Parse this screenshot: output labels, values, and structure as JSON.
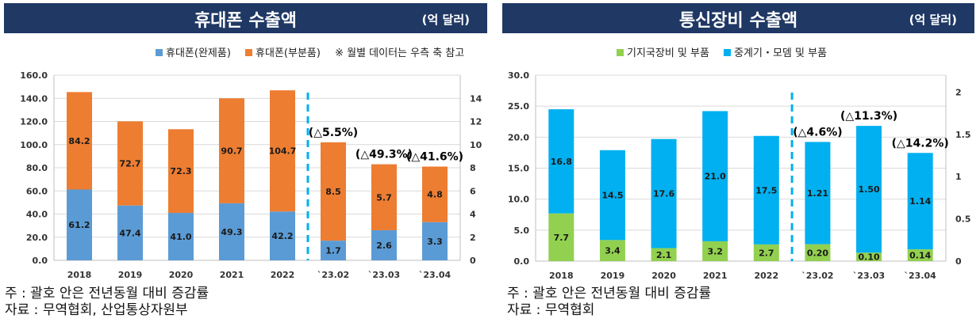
{
  "colors": {
    "header_bg": "#1f3864",
    "blue_phone": "#5b9bd5",
    "orange_parts": "#ed7d31",
    "green_base": "#92d050",
    "cyan_relay": "#00b0f0",
    "divider": "#00b0f0"
  },
  "left": {
    "title": "휴대폰 수출액",
    "unit": "(억 달러)",
    "legend_items": [
      "휴대폰(완제품)",
      "휴대폰(부분품)"
    ],
    "legend_note": "※ 월별 데이터는 우측 축 참고",
    "footnote_1": "주 : 괄호 안은 전년동월 대비 증감률",
    "footnote_2": "자료 : 무역협회, 산업통상자원부"
  },
  "right": {
    "title": "통신장비 수출액",
    "unit": "(억 달러)",
    "legend_items": [
      "기지국장비 및 부품",
      "중계기・모뎀 및 부품"
    ],
    "footnote_1": "주 : 괄호 안은 전년동월 대비 증감률",
    "footnote_2": "자료 : 무역협회"
  },
  "chart_data": [
    {
      "type": "bar",
      "stacked": true,
      "title": "휴대폰 수출액",
      "categories": [
        "2018",
        "2019",
        "2020",
        "2021",
        "2022",
        "`23.02",
        "`23.03",
        "`23.04"
      ],
      "series": [
        {
          "name": "휴대폰(완제품)",
          "values": [
            61.2,
            47.4,
            41.0,
            49.3,
            42.2,
            1.7,
            2.6,
            3.3
          ],
          "labels": [
            "61.2",
            "47.4",
            "41.0",
            "49.3",
            "42.2",
            "1.7",
            "2.6",
            "3.3"
          ]
        },
        {
          "name": "휴대폰(부분품)",
          "values": [
            84.2,
            72.7,
            72.3,
            90.7,
            104.7,
            8.5,
            5.7,
            4.8
          ],
          "labels": [
            "84.2",
            "72.7",
            "72.3",
            "90.7",
            "104.7",
            "8.5",
            "5.7",
            "4.8"
          ]
        }
      ],
      "axis_assignment": [
        "left",
        "left",
        "left",
        "left",
        "left",
        "right",
        "right",
        "right"
      ],
      "ylim_left": [
        0,
        160
      ],
      "yticks_left": [
        "0.0",
        "20.0",
        "40.0",
        "60.0",
        "80.0",
        "100.0",
        "120.0",
        "140.0",
        "160.0"
      ],
      "ylim_right": [
        0,
        16
      ],
      "yticks_right": [
        "0",
        "2",
        "4",
        "6",
        "8",
        "10",
        "12",
        "14"
      ],
      "annotations": [
        {
          "category": "`23.02",
          "text": "(△5.5%)"
        },
        {
          "category": "`23.03",
          "text": "(△49.3%)"
        },
        {
          "category": "`23.04",
          "text": "(△41.6%)"
        }
      ],
      "divider_after": "2022"
    },
    {
      "type": "bar",
      "stacked": true,
      "title": "통신장비 수출액",
      "categories": [
        "2018",
        "2019",
        "2020",
        "2021",
        "2022",
        "`23.02",
        "`23.03",
        "`23.04"
      ],
      "series": [
        {
          "name": "기지국장비 및 부품",
          "values": [
            7.7,
            3.4,
            2.1,
            3.2,
            2.7,
            0.2,
            0.1,
            0.14
          ],
          "labels": [
            "7.7",
            "3.4",
            "2.1",
            "3.2",
            "2.7",
            "0.20",
            "0.10",
            "0.14"
          ]
        },
        {
          "name": "중계기・모뎀 및 부품",
          "values": [
            16.8,
            14.5,
            17.6,
            21.0,
            17.5,
            1.21,
            1.5,
            1.14
          ],
          "labels": [
            "16.8",
            "14.5",
            "17.6",
            "21.0",
            "17.5",
            "1.21",
            "1.50",
            "1.14"
          ]
        }
      ],
      "axis_assignment": [
        "left",
        "left",
        "left",
        "left",
        "left",
        "right",
        "right",
        "right"
      ],
      "ylim_left": [
        0,
        30
      ],
      "yticks_left": [
        "0.0",
        "5.0",
        "10.0",
        "15.0",
        "20.0",
        "25.0",
        "30.0"
      ],
      "ylim_right": [
        0,
        2.2
      ],
      "yticks_right": [
        "0",
        "0.5",
        "1",
        "1.5",
        "2"
      ],
      "annotations": [
        {
          "category": "`23.02",
          "text": "(△4.6%)"
        },
        {
          "category": "`23.03",
          "text": "(△11.3%)"
        },
        {
          "category": "`23.04",
          "text": "(△14.2%)"
        }
      ],
      "divider_after": "2022"
    }
  ]
}
